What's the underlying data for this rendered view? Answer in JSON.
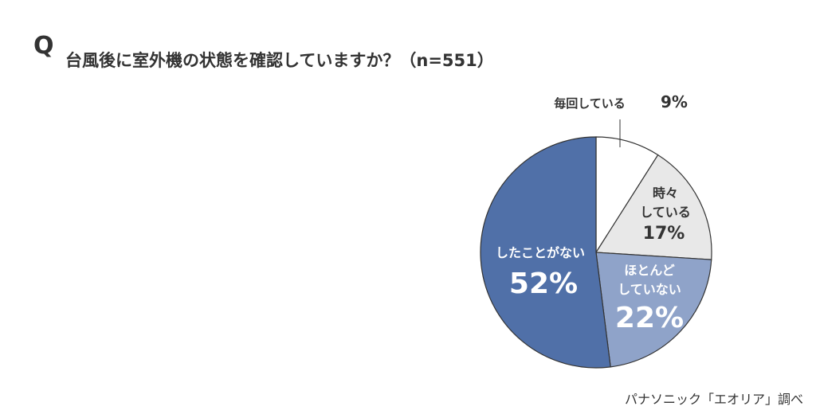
{
  "question_marker": "Q",
  "source": "パナソニック「エオリア」調べ",
  "chart_data": {
    "type": "pie",
    "title": "台風後に室外機の状態を確認していますか？（n=551）",
    "categories": [
      "毎回している",
      "時々\nしている",
      "ほとんど\nしていない",
      "したことがない"
    ],
    "values": [
      9,
      17,
      22,
      52
    ],
    "value_labels": [
      "9%",
      "17%",
      "22%",
      "52%"
    ],
    "colors": [
      "#ffffff",
      "#e8e8e8",
      "#8fa3c9",
      "#5070a8"
    ],
    "label_colors": [
      "#333333",
      "#333333",
      "#ffffff",
      "#ffffff"
    ]
  }
}
